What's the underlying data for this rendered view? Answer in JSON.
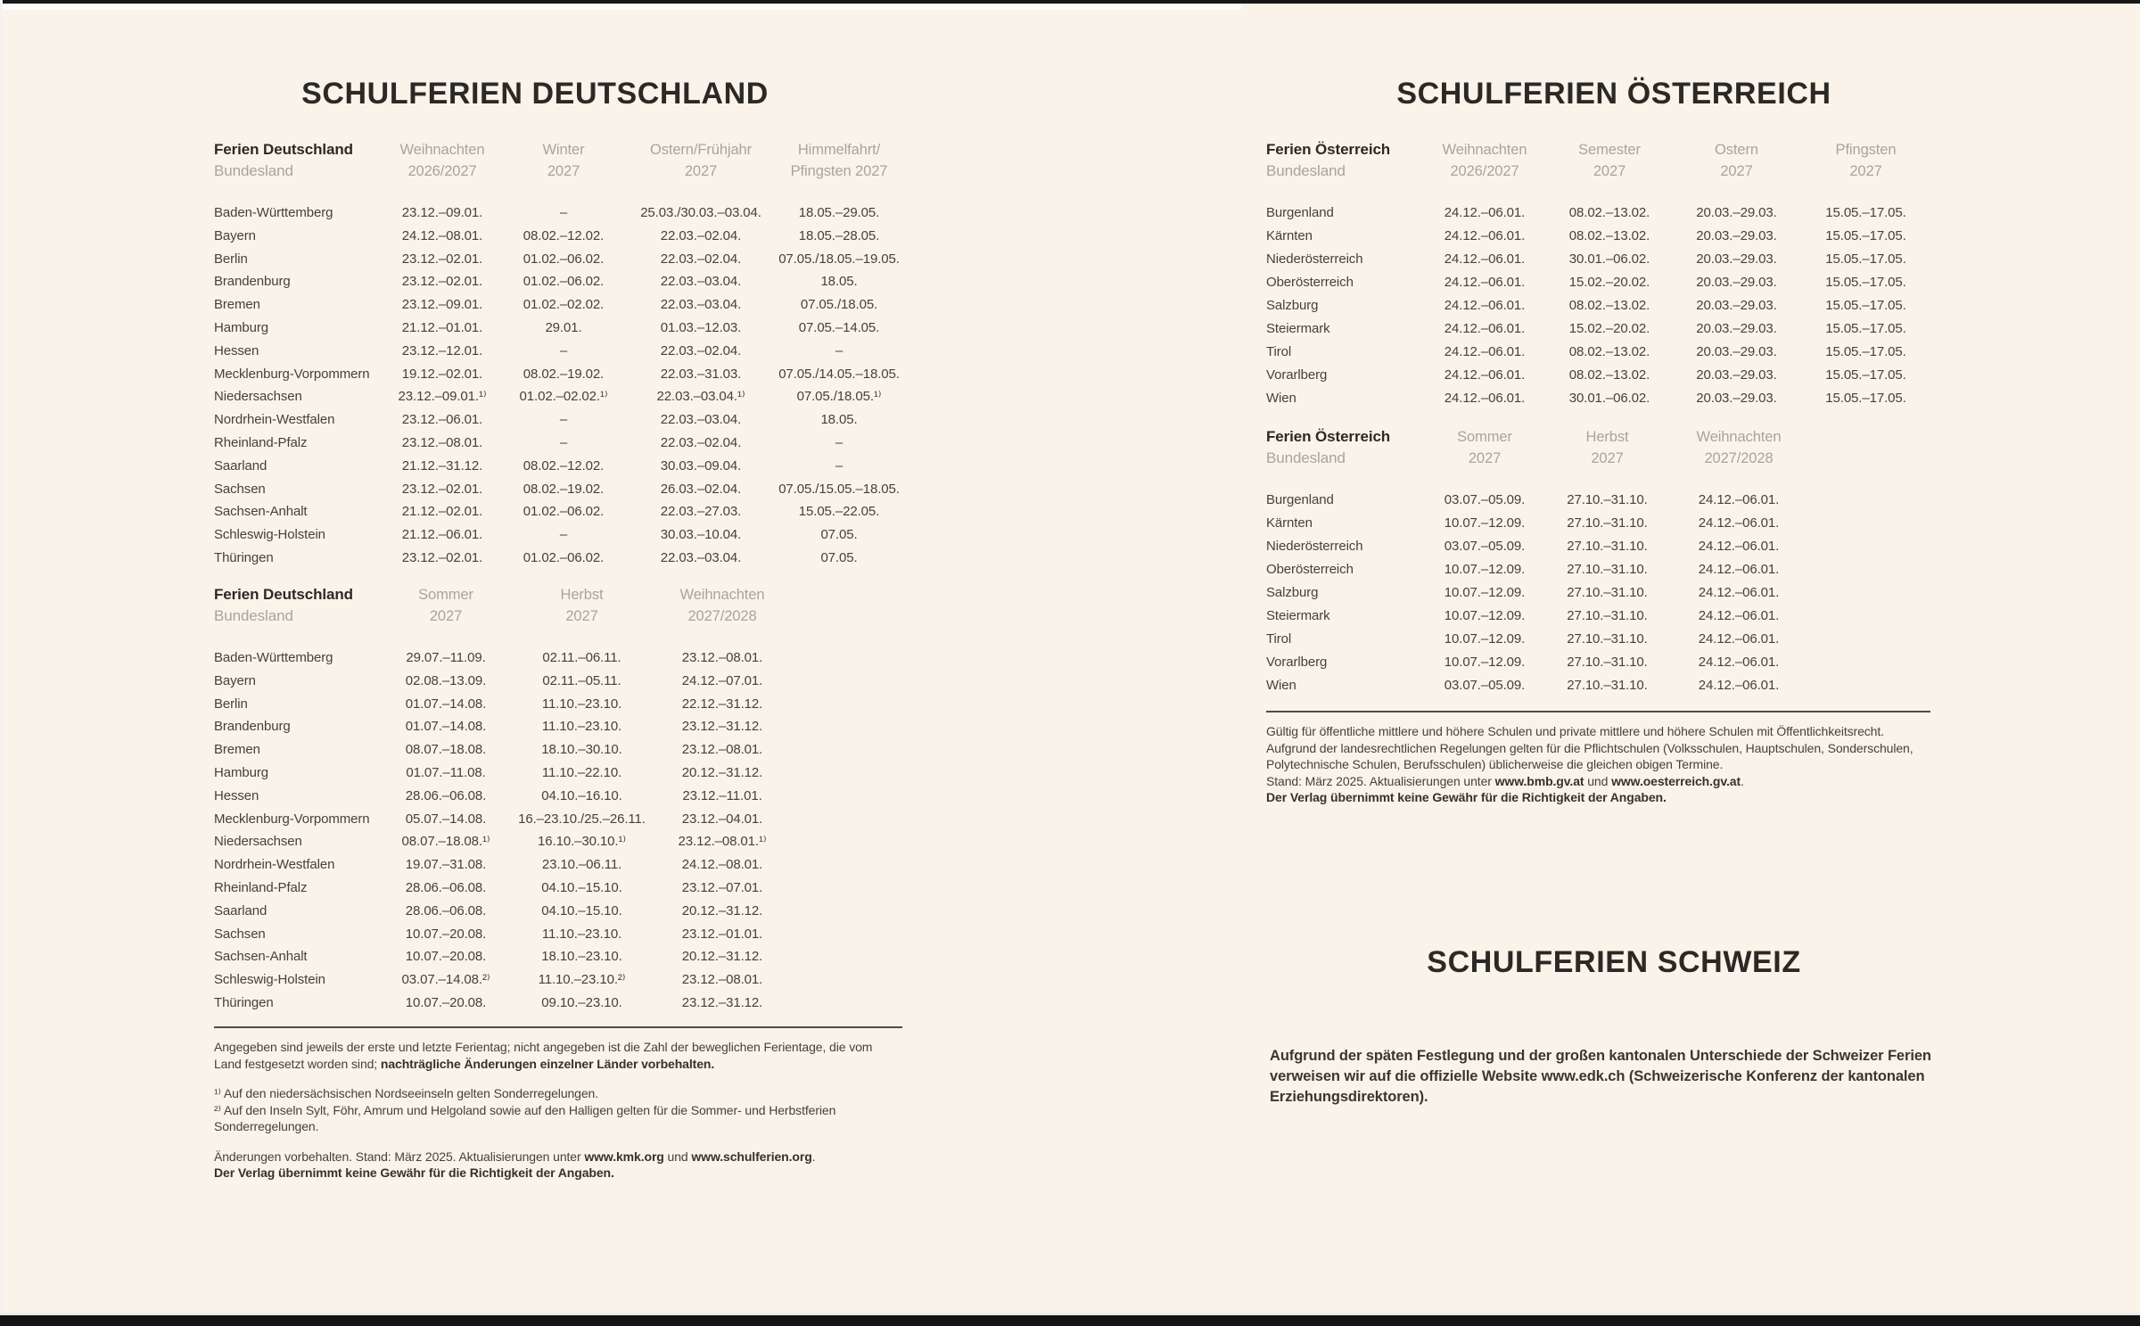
{
  "colors": {
    "page_background": "#faf3e9",
    "ink": "#2b2926",
    "muted_header": "#a9a49b",
    "body_text": "#46413a"
  },
  "germany": {
    "title": "SCHULFERIEN DEUTSCHLAND",
    "table1": {
      "row_header": {
        "line1": "Ferien Deutschland",
        "line2": "Bundesland"
      },
      "columns": [
        {
          "l1": "Weihnachten",
          "l2": "2026/2027"
        },
        {
          "l1": "Winter",
          "l2": "2027"
        },
        {
          "l1": "Ostern/Frühjahr",
          "l2": "2027"
        },
        {
          "l1": "Himmelfahrt/",
          "l2": "Pfingsten 2027"
        }
      ],
      "rows": [
        {
          "land": "Baden-Württemberg",
          "dates": [
            "23.12.–09.01.",
            "–",
            "25.03./30.03.–03.04.",
            "18.05.–29.05."
          ]
        },
        {
          "land": "Bayern",
          "dates": [
            "24.12.–08.01.",
            "08.02.–12.02.",
            "22.03.–02.04.",
            "18.05.–28.05."
          ]
        },
        {
          "land": "Berlin",
          "dates": [
            "23.12.–02.01.",
            "01.02.–06.02.",
            "22.03.–02.04.",
            "07.05./18.05.–19.05."
          ]
        },
        {
          "land": "Brandenburg",
          "dates": [
            "23.12.–02.01.",
            "01.02.–06.02.",
            "22.03.–03.04.",
            "18.05."
          ]
        },
        {
          "land": "Bremen",
          "dates": [
            "23.12.–09.01.",
            "01.02.–02.02.",
            "22.03.–03.04.",
            "07.05./18.05."
          ]
        },
        {
          "land": "Hamburg",
          "dates": [
            "21.12.–01.01.",
            "29.01.",
            "01.03.–12.03.",
            "07.05.–14.05."
          ]
        },
        {
          "land": "Hessen",
          "dates": [
            "23.12.–12.01.",
            "–",
            "22.03.–02.04.",
            "–"
          ]
        },
        {
          "land": "Mecklenburg-Vorpommern",
          "dates": [
            "19.12.–02.01.",
            "08.02.–19.02.",
            "22.03.–31.03.",
            "07.05./14.05.–18.05."
          ]
        },
        {
          "land": "Niedersachsen",
          "dates": [
            "23.12.–09.01.¹⁾",
            "01.02.–02.02.¹⁾",
            "22.03.–03.04.¹⁾",
            "07.05./18.05.¹⁾"
          ]
        },
        {
          "land": "Nordrhein-Westfalen",
          "dates": [
            "23.12.–06.01.",
            "–",
            "22.03.–03.04.",
            "18.05."
          ]
        },
        {
          "land": "Rheinland-Pfalz",
          "dates": [
            "23.12.–08.01.",
            "–",
            "22.03.–02.04.",
            "–"
          ]
        },
        {
          "land": "Saarland",
          "dates": [
            "21.12.–31.12.",
            "08.02.–12.02.",
            "30.03.–09.04.",
            "–"
          ]
        },
        {
          "land": "Sachsen",
          "dates": [
            "23.12.–02.01.",
            "08.02.–19.02.",
            "26.03.–02.04.",
            "07.05./15.05.–18.05."
          ]
        },
        {
          "land": "Sachsen-Anhalt",
          "dates": [
            "21.12.–02.01.",
            "01.02.–06.02.",
            "22.03.–27.03.",
            "15.05.–22.05."
          ]
        },
        {
          "land": "Schleswig-Holstein",
          "dates": [
            "21.12.–06.01.",
            "–",
            "30.03.–10.04.",
            "07.05."
          ]
        },
        {
          "land": "Thüringen",
          "dates": [
            "23.12.–02.01.",
            "01.02.–06.02.",
            "22.03.–03.04.",
            "07.05."
          ]
        }
      ]
    },
    "table2": {
      "row_header": {
        "line1": "Ferien Deutschland",
        "line2": "Bundesland"
      },
      "columns": [
        {
          "l1": "Sommer",
          "l2": "2027"
        },
        {
          "l1": "Herbst",
          "l2": "2027"
        },
        {
          "l1": "Weihnachten",
          "l2": "2027/2028"
        }
      ],
      "rows": [
        {
          "land": "Baden-Württemberg",
          "dates": [
            "29.07.–11.09.",
            "02.11.–06.11.",
            "23.12.–08.01."
          ]
        },
        {
          "land": "Bayern",
          "dates": [
            "02.08.–13.09.",
            "02.11.–05.11.",
            "24.12.–07.01."
          ]
        },
        {
          "land": "Berlin",
          "dates": [
            "01.07.–14.08.",
            "11.10.–23.10.",
            "22.12.–31.12."
          ]
        },
        {
          "land": "Brandenburg",
          "dates": [
            "01.07.–14.08.",
            "11.10.–23.10.",
            "23.12.–31.12."
          ]
        },
        {
          "land": "Bremen",
          "dates": [
            "08.07.–18.08.",
            "18.10.–30.10.",
            "23.12.–08.01."
          ]
        },
        {
          "land": "Hamburg",
          "dates": [
            "01.07.–11.08.",
            "11.10.–22.10.",
            "20.12.–31.12."
          ]
        },
        {
          "land": "Hessen",
          "dates": [
            "28.06.–06.08.",
            "04.10.–16.10.",
            "23.12.–11.01."
          ]
        },
        {
          "land": "Mecklenburg-Vorpommern",
          "dates": [
            "05.07.–14.08.",
            "16.–23.10./25.–26.11.",
            "23.12.–04.01."
          ]
        },
        {
          "land": "Niedersachsen",
          "dates": [
            "08.07.–18.08.¹⁾",
            "16.10.–30.10.¹⁾",
            "23.12.–08.01.¹⁾"
          ]
        },
        {
          "land": "Nordrhein-Westfalen",
          "dates": [
            "19.07.–31.08.",
            "23.10.–06.11.",
            "24.12.–08.01."
          ]
        },
        {
          "land": "Rheinland-Pfalz",
          "dates": [
            "28.06.–06.08.",
            "04.10.–15.10.",
            "23.12.–07.01."
          ]
        },
        {
          "land": "Saarland",
          "dates": [
            "28.06.–06.08.",
            "04.10.–15.10.",
            "20.12.–31.12."
          ]
        },
        {
          "land": "Sachsen",
          "dates": [
            "10.07.–20.08.",
            "11.10.–23.10.",
            "23.12.–01.01."
          ]
        },
        {
          "land": "Sachsen-Anhalt",
          "dates": [
            "10.07.–20.08.",
            "18.10.–23.10.",
            "20.12.–31.12."
          ]
        },
        {
          "land": "Schleswig-Holstein",
          "dates": [
            "03.07.–14.08.²⁾",
            "11.10.–23.10.²⁾",
            "23.12.–08.01."
          ]
        },
        {
          "land": "Thüringen",
          "dates": [
            "10.07.–20.08.",
            "09.10.–23.10.",
            "23.12.–31.12."
          ]
        }
      ]
    },
    "notes": {
      "para1_normal": "Angegeben sind jeweils der erste und letzte Ferientag; nicht angegeben ist die Zahl der beweglichen Ferientage, die vom Land festgesetzt worden sind; ",
      "para1_bold": "nachträgliche Änderungen einzelner Länder vorbehalten.",
      "footnote1": "¹⁾ Auf den niedersächsischen Nordseeinseln gelten Sonderregelungen.",
      "footnote2": "²⁾ Auf den Inseln Sylt, Föhr, Amrum und Helgoland sowie auf den Halligen gelten für die Sommer- und Herbstferien Sonderregelungen.",
      "update_prefix": "Änderungen vorbehalten. Stand: März 2025. Aktualisierungen unter ",
      "update_link1": "www.kmk.org",
      "update_mid": " und ",
      "update_link2": "www.schulferien.org",
      "update_suffix": ".",
      "disclaimer": "Der Verlag übernimmt keine Gewähr für die Richtigkeit der Angaben."
    }
  },
  "austria": {
    "title": "SCHULFERIEN ÖSTERREICH",
    "table1": {
      "row_header": {
        "line1": "Ferien Österreich",
        "line2": "Bundesland"
      },
      "columns": [
        {
          "l1": "Weihnachten",
          "l2": "2026/2027"
        },
        {
          "l1": "Semester",
          "l2": "2027"
        },
        {
          "l1": "Ostern",
          "l2": "2027"
        },
        {
          "l1": "Pfingsten",
          "l2": "2027"
        }
      ],
      "rows": [
        {
          "land": "Burgenland",
          "dates": [
            "24.12.–06.01.",
            "08.02.–13.02.",
            "20.03.–29.03.",
            "15.05.–17.05."
          ]
        },
        {
          "land": "Kärnten",
          "dates": [
            "24.12.–06.01.",
            "08.02.–13.02.",
            "20.03.–29.03.",
            "15.05.–17.05."
          ]
        },
        {
          "land": "Niederösterreich",
          "dates": [
            "24.12.–06.01.",
            "30.01.–06.02.",
            "20.03.–29.03.",
            "15.05.–17.05."
          ]
        },
        {
          "land": "Oberösterreich",
          "dates": [
            "24.12.–06.01.",
            "15.02.–20.02.",
            "20.03.–29.03.",
            "15.05.–17.05."
          ]
        },
        {
          "land": "Salzburg",
          "dates": [
            "24.12.–06.01.",
            "08.02.–13.02.",
            "20.03.–29.03.",
            "15.05.–17.05."
          ]
        },
        {
          "land": "Steiermark",
          "dates": [
            "24.12.–06.01.",
            "15.02.–20.02.",
            "20.03.–29.03.",
            "15.05.–17.05."
          ]
        },
        {
          "land": "Tirol",
          "dates": [
            "24.12.–06.01.",
            "08.02.–13.02.",
            "20.03.–29.03.",
            "15.05.–17.05."
          ]
        },
        {
          "land": "Vorarlberg",
          "dates": [
            "24.12.–06.01.",
            "08.02.–13.02.",
            "20.03.–29.03.",
            "15.05.–17.05."
          ]
        },
        {
          "land": "Wien",
          "dates": [
            "24.12.–06.01.",
            "30.01.–06.02.",
            "20.03.–29.03.",
            "15.05.–17.05."
          ]
        }
      ]
    },
    "table2": {
      "row_header": {
        "line1": "Ferien Österreich",
        "line2": "Bundesland"
      },
      "columns": [
        {
          "l1": "Sommer",
          "l2": "2027"
        },
        {
          "l1": "Herbst",
          "l2": "2027"
        },
        {
          "l1": "Weihnachten",
          "l2": "2027/2028"
        }
      ],
      "rows": [
        {
          "land": "Burgenland",
          "dates": [
            "03.07.–05.09.",
            "27.10.–31.10.",
            "24.12.–06.01."
          ]
        },
        {
          "land": "Kärnten",
          "dates": [
            "10.07.–12.09.",
            "27.10.–31.10.",
            "24.12.–06.01."
          ]
        },
        {
          "land": "Niederösterreich",
          "dates": [
            "03.07.–05.09.",
            "27.10.–31.10.",
            "24.12.–06.01."
          ]
        },
        {
          "land": "Oberösterreich",
          "dates": [
            "10.07.–12.09.",
            "27.10.–31.10.",
            "24.12.–06.01."
          ]
        },
        {
          "land": "Salzburg",
          "dates": [
            "10.07.–12.09.",
            "27.10.–31.10.",
            "24.12.–06.01."
          ]
        },
        {
          "land": "Steiermark",
          "dates": [
            "10.07.–12.09.",
            "27.10.–31.10.",
            "24.12.–06.01."
          ]
        },
        {
          "land": "Tirol",
          "dates": [
            "10.07.–12.09.",
            "27.10.–31.10.",
            "24.12.–06.01."
          ]
        },
        {
          "land": "Vorarlberg",
          "dates": [
            "10.07.–12.09.",
            "27.10.–31.10.",
            "24.12.–06.01."
          ]
        },
        {
          "land": "Wien",
          "dates": [
            "03.07.–05.09.",
            "27.10.–31.10.",
            "24.12.–06.01."
          ]
        }
      ]
    },
    "notes": {
      "line1": "Gültig für öffentliche mittlere und höhere Schulen und private mittlere und höhere Schulen mit Öffentlichkeitsrecht.",
      "line2": "Aufgrund der landesrechtlichen Regelungen gelten für die Pflichtschulen (Volksschulen, Hauptschulen, Sonderschulen, Polytechnische Schulen, Berufsschulen) üblicherweise die gleichen obigen Termine.",
      "stand_prefix": "Stand: März 2025. Aktualisierungen unter ",
      "link1": "www.bmb.gv.at",
      "mid": " und ",
      "link2": "www.oesterreich.gv.at",
      "suffix": ".",
      "disclaimer": "Der Verlag übernimmt keine Gewähr für die Richtigkeit der Angaben."
    }
  },
  "switzerland": {
    "title": "SCHULFERIEN SCHWEIZ",
    "text": "Aufgrund der späten Festlegung und der großen kantonalen Unterschiede der Schweizer Ferien verweisen wir auf die offizielle Website www.edk.ch (Schweizerische Konferenz der kantonalen Erziehungsdirektoren)."
  }
}
